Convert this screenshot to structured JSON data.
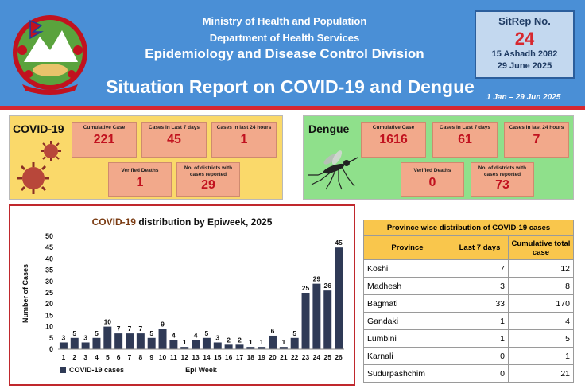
{
  "header": {
    "ministry": "Ministry of Health and Population",
    "department": "Department of Health Services",
    "division": "Epidemiology and Disease Control Division",
    "title": "Situation Report on COVID-19 and Dengue",
    "date_range": "1 Jan – 29 Jun 2025",
    "sitrep_label": "SitRep No.",
    "sitrep_number": "24",
    "date_nepali": "15 Ashadh 2082",
    "date_english": "29 June 2025"
  },
  "covid": {
    "title": "COVID-19",
    "cumulative_label": "Cumulative Case",
    "cumulative_value": "221",
    "last7_label": "Cases in Last 7 days",
    "last7_value": "45",
    "last24_label": "Cases in last 24 hours",
    "last24_value": "1",
    "deaths_label": "Verified Deaths",
    "deaths_value": "1",
    "districts_label": "No. of districts with cases reported",
    "districts_value": "29"
  },
  "dengue": {
    "title": "Dengue",
    "cumulative_label": "Cumulative Case",
    "cumulative_value": "1616",
    "last7_label": "Cases in Last 7 days",
    "last7_value": "61",
    "last24_label": "Cases in last 24 hours",
    "last24_value": "7",
    "deaths_label": "Verified Deaths",
    "deaths_value": "0",
    "districts_label": "No. of districts with cases reported",
    "districts_value": "73"
  },
  "colors": {
    "header_blue": "#4a8fd6",
    "accent_red": "#d7282f",
    "bar": "#2f3a56",
    "covid_panel": "#fad96a",
    "dengue_panel": "#8fe08b",
    "stat_box": "#f2a98b",
    "table_header": "#f9c64c"
  },
  "chart_data": {
    "type": "bar",
    "title_prefix": "COVID-19",
    "title_suffix": " distribution by Epiweek, 2025",
    "xlabel": "Epi Week",
    "ylabel": "Number of Cases",
    "legend": "COVID-19 cases",
    "legend_position": "bottom-left",
    "categories": [
      "1",
      "2",
      "3",
      "4",
      "5",
      "6",
      "7",
      "8",
      "9",
      "10",
      "11",
      "12",
      "13",
      "14",
      "15",
      "16",
      "17",
      "18",
      "19",
      "20",
      "21",
      "22",
      "23",
      "24",
      "25",
      "26"
    ],
    "values": [
      3,
      5,
      3,
      5,
      10,
      7,
      7,
      7,
      5,
      9,
      4,
      1,
      4,
      5,
      3,
      2,
      2,
      1,
      1,
      6,
      1,
      5,
      25,
      29,
      26,
      45
    ],
    "ylim": [
      0,
      50
    ],
    "yticks": [
      0,
      5,
      10,
      15,
      20,
      25,
      30,
      35,
      40,
      45,
      50
    ],
    "grid": false
  },
  "province_table": {
    "title": "Province wise distribution of COVID-19 cases",
    "headers": [
      "Province",
      "Last 7 days",
      "Cumulative total case"
    ],
    "rows": [
      {
        "province": "Koshi",
        "last7": "7",
        "total": "12"
      },
      {
        "province": "Madhesh",
        "last7": "3",
        "total": "8"
      },
      {
        "province": "Bagmati",
        "last7": "33",
        "total": "170"
      },
      {
        "province": "Gandaki",
        "last7": "1",
        "total": "4"
      },
      {
        "province": "Lumbini",
        "last7": "1",
        "total": "5"
      },
      {
        "province": "Karnali",
        "last7": "0",
        "total": "1"
      },
      {
        "province": "Sudurpashchim",
        "last7": "0",
        "total": "21"
      }
    ]
  }
}
